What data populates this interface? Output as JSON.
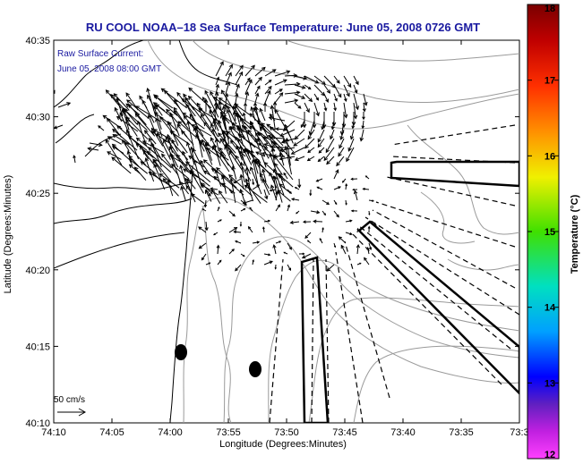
{
  "chart_data": {
    "type": "map-vector-field",
    "title": "RU COOL  NOAA–18  Sea Surface Temperature:  June 05, 2008 0726 GMT",
    "overlay_label_1": "Raw Surface Current:",
    "overlay_label_2": "June 05, 2008 08:00 GMT",
    "xlabel": "Longitude (Degrees:Minutes)",
    "ylabel": "Latitude (Degrees:Minutes)",
    "x_ticks": [
      "74:10",
      "74:05",
      "74:00",
      "73:55",
      "73:50",
      "73:45",
      "73:40",
      "73:35",
      "73:3"
    ],
    "y_ticks": [
      "40:35",
      "40:30",
      "40:25",
      "40:20",
      "40:15",
      "40:10"
    ],
    "lon_range_min_west": [
      -74.1667,
      -73.5
    ],
    "lat_range": [
      40.1667,
      40.5833
    ],
    "scale_label": "50 cm/s",
    "colorbar": {
      "label": "Temperature (°C)",
      "min": 12,
      "max": 18,
      "ticks": [
        "18",
        "17",
        "16",
        "15",
        "14",
        "13",
        "12"
      ]
    },
    "colors": {
      "title": "#1a1aa0",
      "land_contour": "#000000",
      "bathymetry": "#9a9a9a"
    }
  }
}
